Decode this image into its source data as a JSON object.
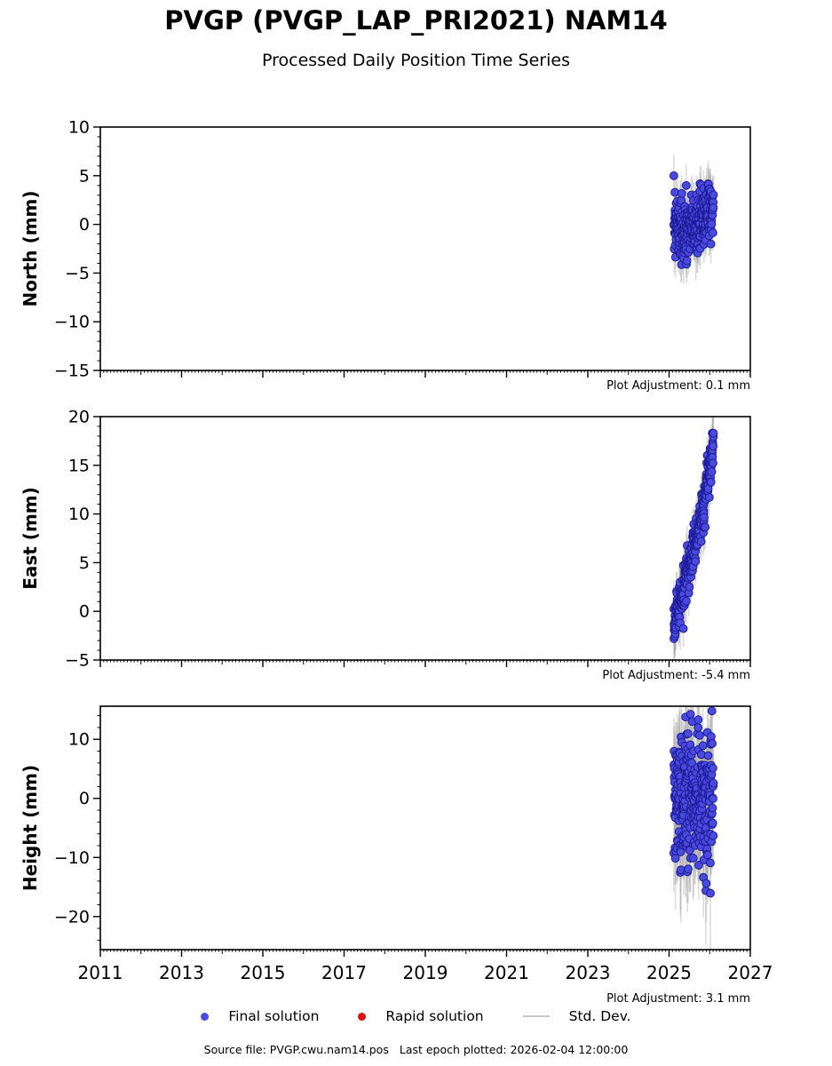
{
  "title": "PVGP (PVGP_LAP_PRI2021) NAM14",
  "subtitle": "Processed Daily Position Time Series",
  "colors": {
    "final_fill": "#4a4ae0",
    "final_edge": "#1c1c96",
    "rapid_fill": "#dd1111",
    "stddev_line": "#c8c8c8",
    "errorbar": "#aaaaaa",
    "axis": "#000000"
  },
  "legend": {
    "items": [
      {
        "label": "Final solution",
        "marker": "dot",
        "color": "#4a4ae0"
      },
      {
        "label": "Rapid solution",
        "marker": "dot",
        "color": "#dd1111"
      },
      {
        "label": "Std. Dev.",
        "marker": "line",
        "color": "#c8c8c8"
      }
    ]
  },
  "footer": {
    "source_label": "Source file: PVGP.cwu.nam14.pos",
    "last_epoch_label": "Last epoch plotted: 2026-02-04 12:00:00"
  },
  "chart_data": [
    {
      "type": "scatter",
      "ylabel": "North (mm)",
      "xlabel": "",
      "plot_adjustment_label": "Plot Adjustment: 0.1 mm",
      "xlim": [
        2011,
        2027
      ],
      "ylim": [
        -15,
        10
      ],
      "y_major_ticks": [
        10,
        5,
        0,
        -5,
        -10,
        -15
      ],
      "y_major_labels": [
        "10",
        "5",
        "0",
        "−5",
        "−10",
        "−15"
      ],
      "y_minor_step": 1,
      "x_major_tick_years": [
        2011,
        2013,
        2015,
        2017,
        2019,
        2021,
        2023,
        2025,
        2027
      ],
      "x_year_step": 1,
      "x_minor_step_years": 0.0833333,
      "show_x_labels": false,
      "series": [
        {
          "name": "Final solution",
          "n": 300,
          "seed": 7,
          "t_start": 2025.115,
          "t_end": 2026.095,
          "trend": [
            [
              2025.115,
              -0.2
            ],
            [
              2025.3,
              -0.7
            ],
            [
              2025.55,
              -0.5
            ],
            [
              2025.8,
              0.7
            ],
            [
              2026.0,
              1.8
            ],
            [
              2026.095,
              2.2
            ]
          ],
          "noise_sd": 1.5,
          "outlier_frac": 0.05,
          "outlier_sd": 2.6,
          "y_clamp": [
            -5.7,
            5.0
          ],
          "err_mean": 1.7,
          "err_sd": 0.5
        }
      ]
    },
    {
      "type": "scatter",
      "ylabel": "East (mm)",
      "xlabel": "",
      "plot_adjustment_label": "Plot Adjustment: -5.4 mm",
      "xlim": [
        2011,
        2027
      ],
      "ylim": [
        -5,
        20
      ],
      "y_major_ticks": [
        20,
        15,
        10,
        5,
        0,
        -5
      ],
      "y_major_labels": [
        "20",
        "15",
        "10",
        "5",
        "0",
        "−5"
      ],
      "y_minor_step": 1,
      "x_major_tick_years": [
        2011,
        2013,
        2015,
        2017,
        2019,
        2021,
        2023,
        2025,
        2027
      ],
      "x_year_step": 1,
      "x_minor_step_years": 0.0833333,
      "show_x_labels": false,
      "series": [
        {
          "name": "Final solution",
          "n": 300,
          "seed": 13,
          "t_start": 2025.115,
          "t_end": 2026.095,
          "trend": [
            [
              2025.115,
              -1.2
            ],
            [
              2025.25,
              0.6
            ],
            [
              2025.4,
              3.0
            ],
            [
              2025.55,
              5.6
            ],
            [
              2025.7,
              8.0
            ],
            [
              2025.85,
              11.0
            ],
            [
              2025.95,
              13.5
            ],
            [
              2026.05,
              16.0
            ],
            [
              2026.095,
              17.3
            ]
          ],
          "noise_sd": 1.1,
          "outlier_frac": 0.04,
          "outlier_sd": 1.8,
          "y_clamp": [
            -2.8,
            18.3
          ],
          "err_mean": 1.8,
          "err_sd": 0.5
        }
      ]
    },
    {
      "type": "scatter",
      "ylabel": "Height (mm)",
      "xlabel": "",
      "plot_adjustment_label": "Plot Adjustment: 3.1 mm",
      "xlim": [
        2011,
        2027
      ],
      "ylim": [
        -25.6,
        15.6
      ],
      "y_major_ticks": [
        10,
        0,
        -10,
        -20
      ],
      "y_major_labels": [
        "10",
        "0",
        "−10",
        "−20"
      ],
      "y_minor_step": 2,
      "x_major_tick_years": [
        2011,
        2013,
        2015,
        2017,
        2019,
        2021,
        2023,
        2025,
        2027
      ],
      "x_tick_labels": [
        "2011",
        "2013",
        "2015",
        "2017",
        "2019",
        "2021",
        "2023",
        "2025",
        "2027"
      ],
      "x_year_step": 1,
      "x_minor_step_years": 0.0833333,
      "show_x_labels": true,
      "series": [
        {
          "name": "Final solution",
          "n": 300,
          "seed": 23,
          "t_start": 2025.115,
          "t_end": 2026.095,
          "trend": [
            [
              2025.115,
              -0.5
            ],
            [
              2026.095,
              -0.5
            ]
          ],
          "noise_sd": 5.6,
          "outlier_frac": 0.07,
          "outlier_sd": 9.0,
          "y_clamp": [
            -20.9,
            14.8
          ],
          "err_mean": 5.5,
          "err_sd": 1.6
        }
      ]
    }
  ]
}
